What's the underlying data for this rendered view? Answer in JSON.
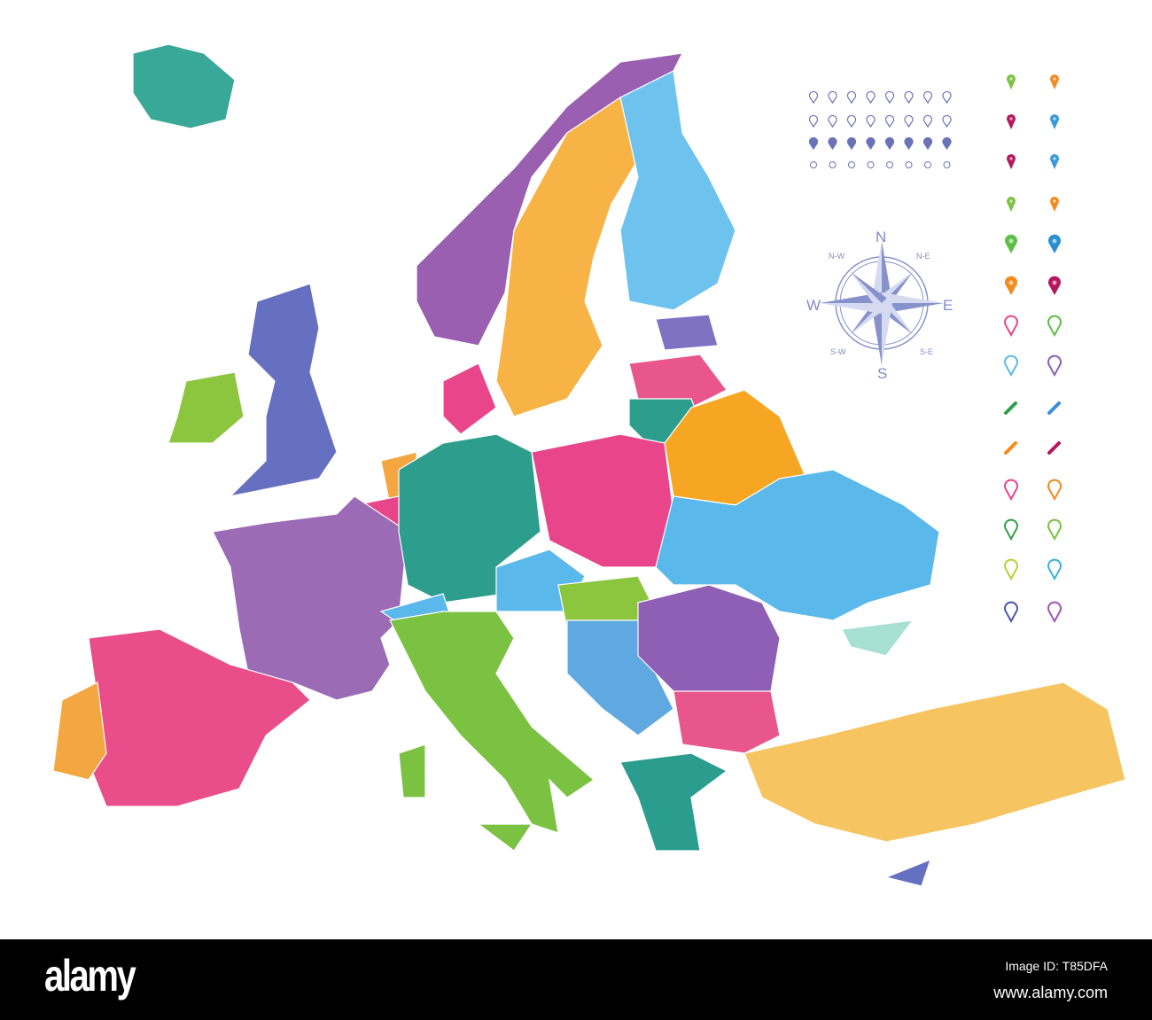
{
  "compass": {
    "n": "N",
    "s": "S",
    "e": "E",
    "w": "W",
    "ne": "N-E",
    "nw": "N-W",
    "se": "S-E",
    "sw": "S-W",
    "color": "#8792cc"
  },
  "pins": {
    "left_colors": [
      "#7bc142",
      "#b5175f",
      "#b5175f",
      "#7bc142",
      "#5cc046",
      "#f58a1f",
      "#e8458a",
      "#5bb8ea",
      "#2fa04a",
      "#f58a1f",
      "#e8458a",
      "#2fa04a",
      "#b5d334",
      "#4a57a8"
    ],
    "right_colors": [
      "#f58a1f",
      "#3a9ad9",
      "#3a9ad9",
      "#f58a1f",
      "#2a8fd0",
      "#b5175f",
      "#5cc046",
      "#8e5fb5",
      "#3a8fd9",
      "#b5175f",
      "#f58a1f",
      "#7bc142",
      "#3ab0d9",
      "#9b59b6"
    ]
  },
  "icon_color": "#6b73b8",
  "footer": {
    "logo": "alamy",
    "image_id": "Image ID: T85DFA",
    "url": "www.alamy.com"
  }
}
